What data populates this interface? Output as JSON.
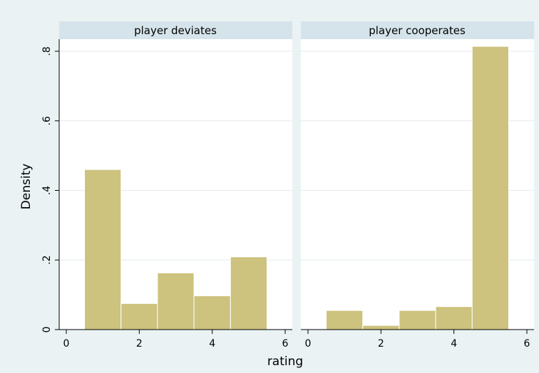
{
  "chart_data": {
    "type": "bar",
    "xlabel": "rating",
    "ylabel": "Density",
    "xlim": [
      0,
      6
    ],
    "ylim": [
      0,
      0.8
    ],
    "x_ticks": [
      0,
      2,
      4,
      6
    ],
    "x_tick_labels": [
      "0",
      "2",
      "4",
      "6"
    ],
    "y_ticks": [
      0,
      0.2,
      0.4,
      0.6,
      0.8
    ],
    "y_tick_labels": [
      "0",
      ".2",
      ".4",
      ".6",
      ".8"
    ],
    "grid": true,
    "bin_width": 1,
    "bin_centers": [
      1,
      2,
      3,
      4,
      5
    ],
    "bar_color": "#cdc27e",
    "bar_edge_color": "#ffffff",
    "panels": [
      {
        "title": "player deviates",
        "values": [
          0.46,
          0.075,
          0.163,
          0.097,
          0.209
        ]
      },
      {
        "title": "player cooperates",
        "values": [
          0.055,
          0.012,
          0.055,
          0.066,
          0.814
        ]
      }
    ]
  }
}
